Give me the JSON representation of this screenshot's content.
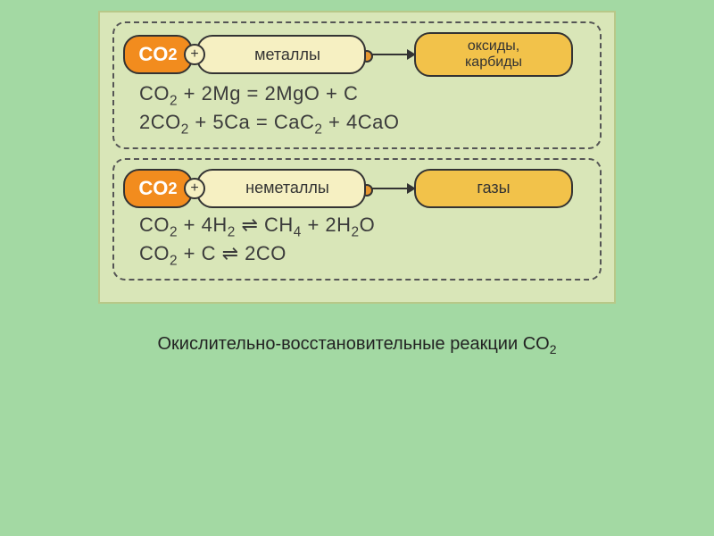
{
  "background_color": "#a3d9a3",
  "card_bg": "#d9e6b8",
  "blocks": [
    {
      "reactant_a": "CO2",
      "reactant_a_sub": "2",
      "reactant_b": "металлы",
      "product_line1": "оксиды,",
      "product_line2": "карбиды",
      "product_single": false,
      "equations": [
        "CO2 + 2Mg = 2MgO + C",
        "2CO2 + 5Ca = CaC2 + 4CaO"
      ],
      "eq_html": [
        "CO<sub>2</sub> + 2Mg = 2MgO + C",
        "2CO<sub>2</sub> + 5Ca = CaC<sub>2</sub> + 4CaO"
      ]
    },
    {
      "reactant_a": "CO2",
      "reactant_a_sub": "2",
      "reactant_b": "неметаллы",
      "product_line1": "газы",
      "product_line2": "",
      "product_single": true,
      "equations": [
        "CO2 + 4H2 ⇌ CH4 + 2H2O",
        "CO2 + C ⇌ 2CO"
      ],
      "eq_html": [
        "CO<sub>2</sub> + 4H<sub>2</sub> ⇌ CH<sub>4</sub> + 2H<sub>2</sub>O",
        "CO<sub>2</sub> + C ⇌ 2CO"
      ]
    }
  ],
  "caption_html": "Окислительно-восстановительные реакции CO<sub>2</sub>",
  "caption": "Окислительно-восстановительные реакции CO2",
  "colors": {
    "reactant_a_bg": "#f28c1e",
    "reactant_b_bg": "#f6f0c2",
    "product_bg": "#f2c24a",
    "border": "#333333",
    "dash_border": "#555555",
    "text": "#3b3b3b"
  },
  "font_sizes": {
    "pill": 18,
    "reactant_a": 22,
    "equation": 22,
    "caption": 20
  }
}
